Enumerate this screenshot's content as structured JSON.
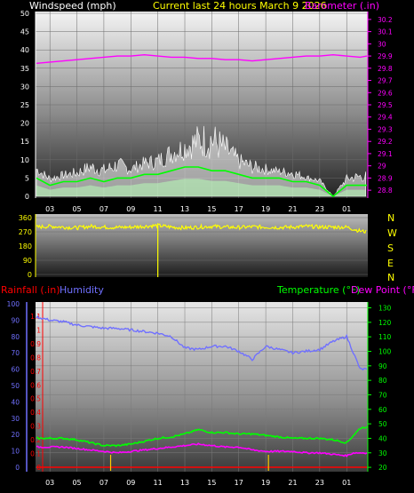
{
  "header": {
    "windspeed_label": "Windspeed (mph)",
    "title": "Current last 24 hours March 9 2026",
    "barometer_label": "Barometer (.in)"
  },
  "lower_header": {
    "rainfall_label": "Rainfall (.in)",
    "humidity_label": "Humidity",
    "temperature_label": "Temperature (°F)",
    "dewpoint_label": "Dew Point (°F)"
  },
  "compass": [
    "N",
    "W",
    "S",
    "E",
    "N"
  ],
  "colors": {
    "wind": "#ffffff",
    "wind_avg": "#00ff00",
    "barometer": "#ff00ff",
    "direction": "#ffff00",
    "rainfall": "#ff0000",
    "humidity": "#7070ff",
    "temperature": "#00ff00",
    "dewpoint": "#ff00ff",
    "title": "#ffff00"
  },
  "chart_data": [
    {
      "type": "line",
      "name": "wind",
      "x_ticks": [
        "03",
        "05",
        "07",
        "09",
        "11",
        "13",
        "15",
        "17",
        "19",
        "21",
        "23",
        "01"
      ],
      "y_left_ticks": [
        0,
        5,
        10,
        15,
        20,
        25,
        30,
        35,
        40,
        45,
        50
      ],
      "ylim_left": [
        0,
        50
      ],
      "y_right_ticks": [
        "28.8",
        "28.9",
        "29",
        "29.1",
        "29.2",
        "29.3",
        "29.4",
        "29.5",
        "29.6",
        "29.7",
        "29.8",
        "29.9",
        "30",
        "30.1",
        "30.2"
      ],
      "ylim_right": [
        28.75,
        30.25
      ],
      "xlim": [
        2,
        26.5
      ],
      "series": [
        {
          "name": "Windspeed (mph)",
          "x": [
            2,
            3,
            4,
            5,
            6,
            7,
            8,
            9,
            10,
            11,
            12,
            13,
            14,
            15,
            16,
            17,
            18,
            19,
            20,
            21,
            22,
            23,
            24,
            25,
            26,
            26.5
          ],
          "gust": [
            9,
            6,
            7,
            8,
            10,
            9,
            11,
            9,
            11,
            12,
            15,
            17,
            20,
            21,
            17,
            12,
            10,
            9,
            8,
            8,
            6,
            5,
            0,
            6,
            7,
            7
          ],
          "avg": [
            5,
            3,
            4,
            4,
            5,
            4,
            5,
            5,
            6,
            6,
            7,
            8,
            8,
            7,
            7,
            6,
            5,
            5,
            5,
            4,
            4,
            3,
            0,
            3,
            3,
            3
          ]
        },
        {
          "name": "Barometer (.in)",
          "x": [
            2,
            3,
            4,
            5,
            6,
            7,
            8,
            9,
            10,
            11,
            12,
            13,
            14,
            15,
            16,
            17,
            18,
            19,
            20,
            21,
            22,
            23,
            24,
            25,
            26,
            26.5
          ],
          "values": [
            29.84,
            29.85,
            29.86,
            29.87,
            29.88,
            29.89,
            29.9,
            29.9,
            29.91,
            29.9,
            29.89,
            29.89,
            29.88,
            29.88,
            29.87,
            29.87,
            29.86,
            29.87,
            29.88,
            29.89,
            29.9,
            29.9,
            29.91,
            29.9,
            29.89,
            29.9
          ]
        }
      ]
    },
    {
      "type": "line",
      "name": "wind-direction",
      "y_ticks": [
        0,
        90,
        180,
        270,
        360
      ],
      "ylim": [
        0,
        360
      ],
      "xlim": [
        2,
        26.5
      ],
      "series": [
        {
          "name": "Wind direction",
          "x": [
            2,
            3,
            4,
            5,
            6,
            7,
            8,
            9,
            10,
            11,
            12,
            13,
            14,
            15,
            16,
            17,
            18,
            19,
            20,
            21,
            22,
            23,
            24,
            25,
            26,
            26.5
          ],
          "values": [
            300,
            305,
            300,
            295,
            305,
            300,
            298,
            300,
            305,
            310,
            300,
            295,
            300,
            305,
            300,
            298,
            302,
            300,
            298,
            300,
            305,
            300,
            300,
            300,
            275,
            270
          ]
        }
      ],
      "markers_x": [
        11
      ]
    },
    {
      "type": "line",
      "name": "rain-humidity-temperature",
      "x_ticks": [
        "03",
        "05",
        "07",
        "09",
        "11",
        "13",
        "15",
        "17",
        "19",
        "21",
        "23",
        "01"
      ],
      "y_humidity_ticks": [
        0,
        10,
        20,
        30,
        40,
        50,
        60,
        70,
        80,
        90,
        100
      ],
      "y_rain_ticks": [
        "0",
        "0.1",
        "0.2",
        "0.3",
        "0.4",
        "0.5",
        "0.6",
        "0.7",
        "0.8",
        "0.9",
        "1",
        "1.1"
      ],
      "y_temp_ticks": [
        20,
        30,
        40,
        50,
        60,
        70,
        80,
        90,
        100,
        110,
        120,
        130
      ],
      "ylim_temp": [
        17,
        134
      ],
      "xlim": [
        2,
        26.5
      ],
      "series": [
        {
          "name": "Humidity",
          "x": [
            2,
            3,
            4,
            5,
            6,
            7,
            8,
            9,
            10,
            11,
            12,
            13,
            14,
            15,
            16,
            17,
            18,
            19,
            20,
            21,
            22,
            23,
            24,
            25,
            25.5,
            26,
            26.5
          ],
          "values": [
            92,
            90,
            89,
            87,
            86,
            85,
            85,
            84,
            83,
            82,
            80,
            73,
            72,
            74,
            74,
            71,
            66,
            74,
            72,
            70,
            71,
            72,
            77,
            80,
            70,
            60,
            60
          ]
        },
        {
          "name": "Temperature (°F)",
          "x": [
            2,
            3,
            4,
            5,
            6,
            7,
            8,
            9,
            10,
            11,
            12,
            13,
            14,
            15,
            16,
            17,
            18,
            19,
            20,
            21,
            22,
            23,
            24,
            25,
            25.5,
            26,
            26.5
          ],
          "values": [
            40,
            40,
            40,
            39,
            37,
            35,
            35,
            36,
            38,
            40,
            41,
            43,
            46,
            44,
            44,
            43,
            43,
            42,
            41,
            40,
            40,
            40,
            39,
            37,
            42,
            47,
            48
          ]
        },
        {
          "name": "Dew Point (°F)",
          "x": [
            2,
            3,
            4,
            5,
            6,
            7,
            8,
            9,
            10,
            11,
            12,
            13,
            14,
            15,
            16,
            17,
            18,
            19,
            20,
            21,
            22,
            23,
            24,
            25,
            25.5,
            26,
            26.5
          ],
          "values": [
            34,
            34,
            34,
            33,
            32,
            31,
            30,
            31,
            32,
            33,
            34,
            35,
            36,
            35,
            34,
            34,
            32,
            31,
            31,
            31,
            30,
            30,
            29,
            28,
            30,
            30,
            30
          ]
        },
        {
          "name": "Rainfall (.in)",
          "x": [
            2,
            26.5
          ],
          "values": [
            0,
            0
          ]
        }
      ],
      "markers_x": [
        7.5,
        19.2
      ]
    }
  ]
}
